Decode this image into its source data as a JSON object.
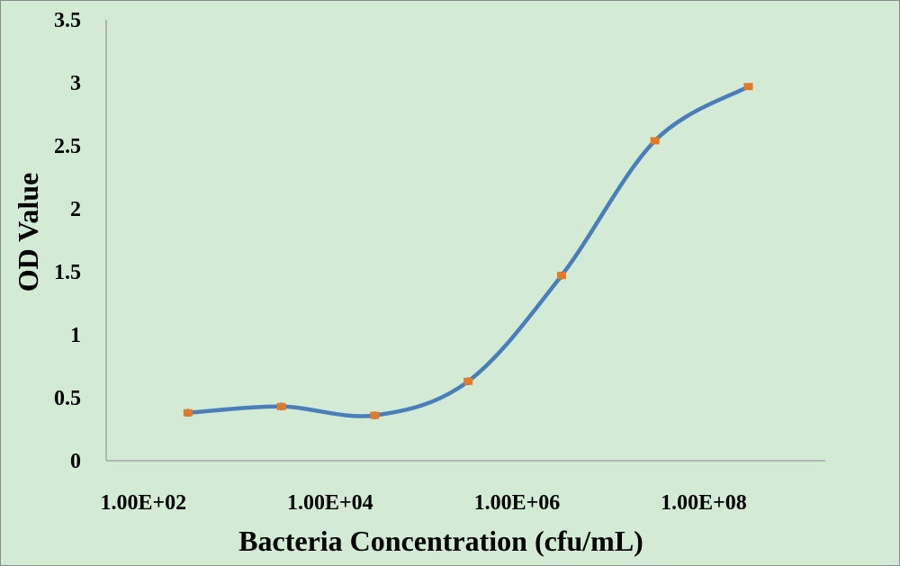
{
  "chart_data": {
    "type": "line",
    "title": "",
    "xlabel": "Bacteria Concentration (cfu/mL)",
    "ylabel": "OD Value",
    "x_scale": "log10",
    "xlim": [
      40,
      2000000000
    ],
    "ylim": [
      0,
      3.5
    ],
    "y_ticks": [
      "0",
      "0.5",
      "1",
      "1.5",
      "2",
      "2.5",
      "3",
      "3.5"
    ],
    "x_ticks": [
      {
        "value": 100,
        "label": "1.00E+02"
      },
      {
        "value": 10000,
        "label": "1.00E+04"
      },
      {
        "value": 1000000,
        "label": "1.00E+06"
      },
      {
        "value": 100000000,
        "label": "1.00E+08"
      }
    ],
    "grid": false,
    "legend": "none",
    "smooth": true,
    "series": [
      {
        "x": [
          300,
          3000,
          30000,
          300000,
          3000000,
          30000000,
          300000000
        ],
        "y": [
          0.38,
          0.43,
          0.36,
          0.63,
          1.47,
          2.54,
          2.97
        ],
        "error": [
          0.03,
          0.03,
          0.03,
          0.03,
          0.03,
          0.02,
          0.02
        ]
      }
    ],
    "colors": {
      "line": "#4a7ebb",
      "marker": "#e07b2a",
      "error_bar": "#000000",
      "axis": "#a6a6a6",
      "background": "#d3ebd5"
    }
  }
}
